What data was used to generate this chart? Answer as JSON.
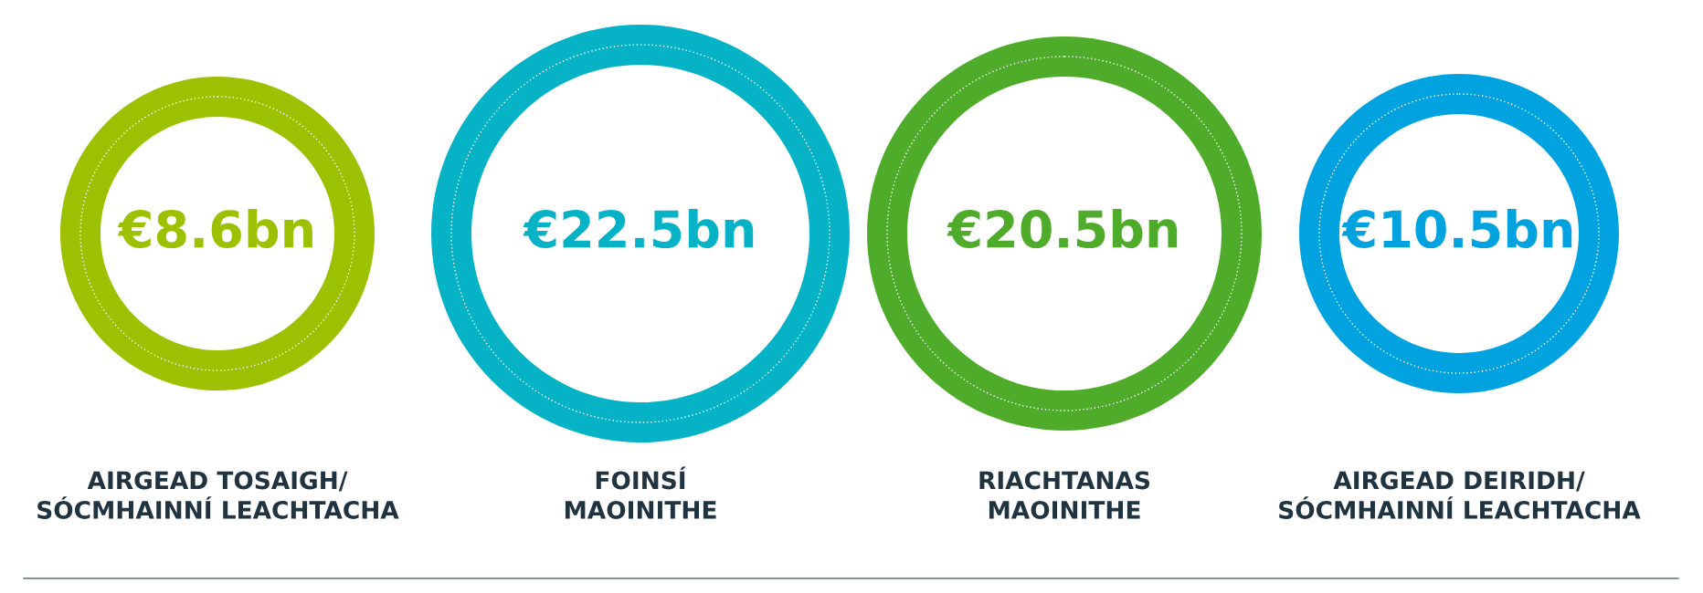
{
  "chart_data": {
    "type": "other",
    "categories": [
      "AIRGEAD TOSAIGH/\nSÓCMHAINNÍ LEACHTACHA",
      "FOINSÍ\nMAOINITHE",
      "RIACHTANAS\nMAOINITHE",
      "AIRGEAD DEIRIDH/\nSÓCMHAINNÍ LEACHTACHA"
    ],
    "values": [
      8.6,
      22.5,
      20.5,
      10.5
    ],
    "value_labels": [
      "€8.6bn",
      "€22.5bn",
      "€20.5bn",
      "€10.5bn"
    ],
    "colors": [
      "#9bc100",
      "#06b2c6",
      "#4fac2a",
      "#00a3e0"
    ]
  }
}
